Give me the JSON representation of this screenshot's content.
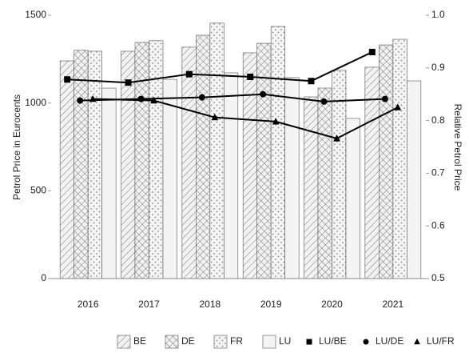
{
  "chart_data": {
    "type": "bar",
    "y_label": "Petrol Price in Eurocents",
    "y2_label": "Relative Petrol Price",
    "categories": [
      "2016",
      "2017",
      "2018",
      "2019",
      "2020",
      "2021"
    ],
    "ylim": [
      0,
      1500
    ],
    "yticks": [
      0,
      500,
      1000,
      1500
    ],
    "y2lim": [
      0.5,
      1.0
    ],
    "y2ticks": [
      0.5,
      0.6,
      0.7,
      0.8,
      0.9,
      {
        "value": 1.0,
        "label": "1.0"
      }
    ],
    "grid": false,
    "series": [
      {
        "name": "BE",
        "type": "bar",
        "pattern": "diagonal",
        "color": "#555555",
        "values": [
          1240,
          1295,
          1318,
          1286,
          1035,
          1204
        ]
      },
      {
        "name": "DE",
        "type": "bar",
        "pattern": "crosshatch",
        "color": "#555555",
        "values": [
          1300,
          1345,
          1386,
          1340,
          1085,
          1331
        ]
      },
      {
        "name": "FR",
        "type": "bar",
        "pattern": "dots",
        "color": "#555555",
        "values": [
          1295,
          1355,
          1455,
          1436,
          1186,
          1363
        ]
      },
      {
        "name": "LU",
        "type": "bar",
        "pattern": "solid",
        "color": "#555555",
        "values": [
          1085,
          1135,
          1172,
          1145,
          912,
          1126
        ]
      },
      {
        "name": "LU/BE",
        "type": "line",
        "axis": "y2",
        "marker": "square",
        "color": "#000000",
        "values": [
          0.878,
          0.872,
          0.888,
          0.883,
          0.875,
          0.93
        ]
      },
      {
        "name": "LU/DE",
        "type": "line",
        "axis": "y2",
        "marker": "circle",
        "color": "#000000",
        "values": [
          0.838,
          0.841,
          0.844,
          0.85,
          0.836,
          0.841
        ]
      },
      {
        "name": "LU/FR",
        "type": "line",
        "axis": "y2",
        "marker": "triangle",
        "color": "#000000",
        "values": [
          0.841,
          0.838,
          0.806,
          0.798,
          0.766,
          0.825
        ]
      }
    ]
  }
}
